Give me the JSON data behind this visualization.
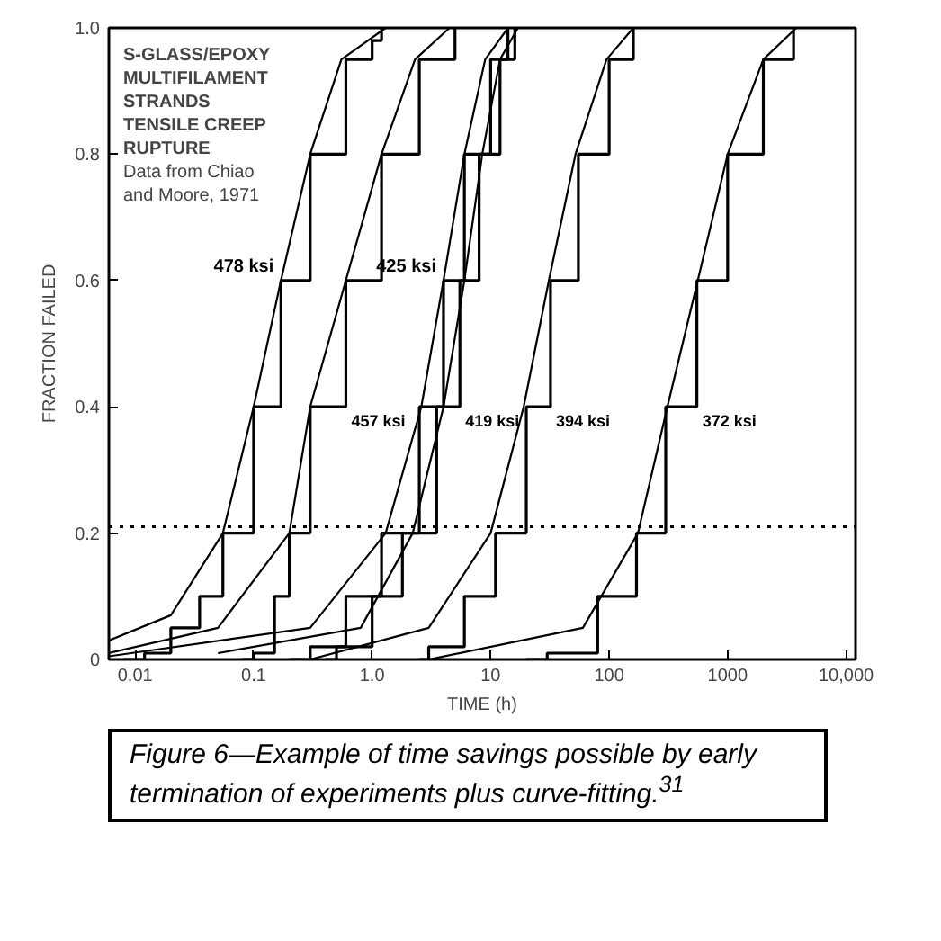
{
  "chart_data": {
    "type": "line",
    "xlabel": "TIME (h)",
    "ylabel": "FRACTION FAILED",
    "log": "x",
    "xlim": [
      0.006,
      12000
    ],
    "ylim": [
      0,
      1.0
    ],
    "xticks": [
      0.01,
      0.1,
      {
        "value": 1,
        "label": "1.0"
      },
      10,
      100,
      1000,
      {
        "value": 10000,
        "label": "10,000"
      }
    ],
    "yticks": [
      0,
      0.2,
      0.4,
      0.6,
      0.8,
      {
        "value": 1,
        "label": "1.0"
      }
    ],
    "grid": false,
    "legend": false,
    "marker": "none",
    "line_style": "solid",
    "series": [
      {
        "type": "step",
        "name": "478 ksi",
        "color": "#000000",
        "x": [
          0.008,
          0.012,
          0.02,
          0.035,
          0.055,
          0.1,
          0.17,
          0.3,
          0.6,
          1.0,
          1.2
        ],
        "values": [
          0.0,
          0.01,
          0.05,
          0.1,
          0.2,
          0.4,
          0.6,
          0.8,
          0.95,
          0.98,
          1.0
        ]
      },
      {
        "type": "step",
        "name": "457 ksi",
        "color": "#000000",
        "x": [
          0.08,
          0.1,
          0.15,
          0.2,
          0.3,
          0.6,
          1.2,
          2.5,
          5
        ],
        "values": [
          0.0,
          0.01,
          0.1,
          0.2,
          0.4,
          0.6,
          0.8,
          0.95,
          1.0
        ]
      },
      {
        "type": "step",
        "name": "425 ksi",
        "color": "#000000",
        "x": [
          0.2,
          0.3,
          0.6,
          1.2,
          2.5,
          4,
          6,
          10,
          14
        ],
        "values": [
          0.0,
          0.02,
          0.1,
          0.2,
          0.4,
          0.6,
          0.8,
          0.95,
          1.0
        ]
      },
      {
        "type": "step",
        "name": "419 ksi",
        "color": "#000000",
        "x": [
          0.4,
          0.5,
          1,
          1.8,
          3.5,
          5.5,
          8,
          12,
          16
        ],
        "values": [
          0.0,
          0.02,
          0.1,
          0.2,
          0.4,
          0.6,
          0.8,
          0.95,
          1.0
        ]
      },
      {
        "type": "step",
        "name": "394 ksi",
        "color": "#000000",
        "x": [
          2.5,
          3,
          6,
          11,
          20,
          32,
          55,
          100,
          160
        ],
        "values": [
          0.0,
          0.02,
          0.1,
          0.2,
          0.4,
          0.6,
          0.8,
          0.95,
          1.0
        ]
      },
      {
        "type": "step",
        "name": "372 ksi",
        "color": "#000000",
        "x": [
          20,
          30,
          80,
          170,
          300,
          550,
          1000,
          2000,
          3600
        ],
        "values": [
          0.0,
          0.01,
          0.1,
          0.2,
          0.4,
          0.6,
          0.8,
          0.95,
          1.0
        ]
      },
      {
        "color": "#000000",
        "x": [
          0.006,
          0.02,
          0.055,
          0.1,
          0.17,
          0.3,
          0.55,
          1.3
        ],
        "values": [
          0.03,
          0.07,
          0.2,
          0.4,
          0.6,
          0.8,
          0.95,
          1.0
        ]
      },
      {
        "color": "#000000",
        "x": [
          0.006,
          0.05,
          0.2,
          0.3,
          0.6,
          1.2,
          2.3,
          4.5
        ],
        "values": [
          0.01,
          0.05,
          0.2,
          0.4,
          0.6,
          0.8,
          0.95,
          1.0
        ]
      },
      {
        "color": "#000000",
        "x": [
          0.006,
          0.3,
          1.3,
          2.6,
          4,
          6,
          9,
          14
        ],
        "values": [
          0.005,
          0.05,
          0.2,
          0.4,
          0.6,
          0.8,
          0.95,
          1.0
        ]
      },
      {
        "color": "#000000",
        "x": [
          0.05,
          0.8,
          2.2,
          4,
          6,
          8.5,
          12,
          17
        ],
        "values": [
          0.01,
          0.05,
          0.2,
          0.4,
          0.6,
          0.8,
          0.95,
          1.0
        ]
      },
      {
        "color": "#000000",
        "x": [
          0.3,
          3,
          10,
          19,
          31,
          52,
          95,
          160
        ],
        "values": [
          0.0,
          0.05,
          0.2,
          0.4,
          0.6,
          0.8,
          0.95,
          1.0
        ]
      },
      {
        "color": "#000000",
        "x": [
          3,
          60,
          175,
          310,
          560,
          1000,
          2000,
          3800
        ],
        "values": [
          0.0,
          0.05,
          0.2,
          0.4,
          0.6,
          0.8,
          0.95,
          1.0
        ]
      }
    ],
    "ref_lines": [
      {
        "axis": "y",
        "value": 0.21,
        "color": "#000000",
        "line_style": "dotted"
      }
    ],
    "annotations": [
      "S-GLASS/EPOXY",
      "MULTIFILAMENT",
      "STRANDS",
      "TENSILE CREEP",
      "RUPTURE",
      "Data from Chiao",
      "and Moore, 1971",
      "Figure 6—Example of time savings possible by early termination of experiments plus curve-fitting.$^{31}$"
    ]
  }
}
